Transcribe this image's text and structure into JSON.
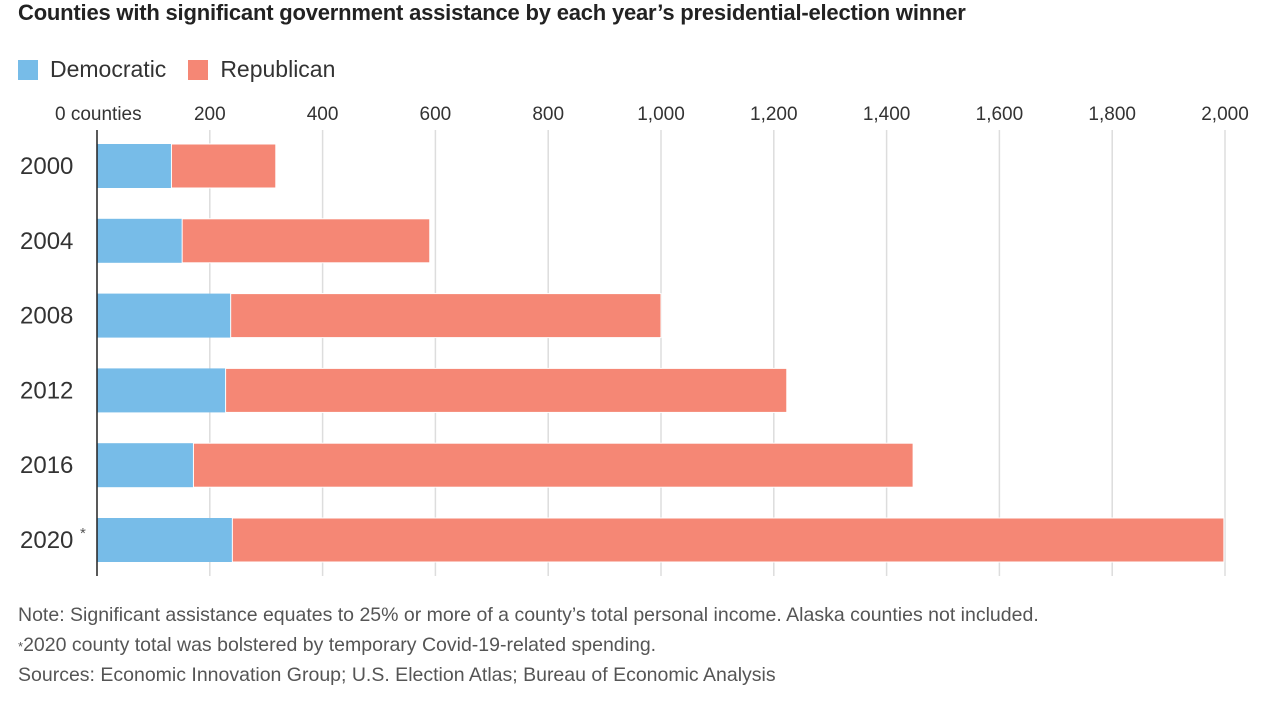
{
  "title": "Counties with significant government assistance by each year’s presidential-election winner",
  "legend": [
    {
      "label": "Democratic",
      "color": "#77bce8"
    },
    {
      "label": "Republican",
      "color": "#f58775"
    }
  ],
  "chart_data": {
    "type": "bar",
    "orientation": "horizontal",
    "stacked": true,
    "title": "Counties with significant government assistance by each year’s presidential-election winner",
    "categories": [
      "2000",
      "2004",
      "2008",
      "2012",
      "2016",
      "2020"
    ],
    "category_marks": [
      "",
      "",
      "",
      "",
      "",
      "*"
    ],
    "series": [
      {
        "name": "Democratic",
        "color": "#77bce8",
        "values": [
          132,
          151,
          237,
          228,
          171,
          240
        ]
      },
      {
        "name": "Republican",
        "color": "#f58775",
        "values": [
          185,
          439,
          763,
          995,
          1276,
          1758
        ]
      }
    ],
    "xlim": [
      0,
      2000
    ],
    "x_ticks": [
      {
        "value": 0,
        "label": "0 counties"
      },
      {
        "value": 200,
        "label": "200"
      },
      {
        "value": 400,
        "label": "400"
      },
      {
        "value": 600,
        "label": "600"
      },
      {
        "value": 800,
        "label": "800"
      },
      {
        "value": 1000,
        "label": "1,000"
      },
      {
        "value": 1200,
        "label": "1,200"
      },
      {
        "value": 1400,
        "label": "1,400"
      },
      {
        "value": 1600,
        "label": "1,600"
      },
      {
        "value": 1800,
        "label": "1,800"
      },
      {
        "value": 2000,
        "label": "2,000"
      }
    ],
    "grid": true,
    "legend_position": "top-left"
  },
  "notes": {
    "note": "Note: Significant assistance equates to 25% or more of a county’s total personal income. Alaska counties not included.",
    "footnote_mark": "*",
    "footnote": "2020 county total was bolstered by temporary Covid-19-related spending.",
    "sources": "Sources: Economic Innovation Group; U.S. Election Atlas; Bureau of Economic Analysis"
  }
}
